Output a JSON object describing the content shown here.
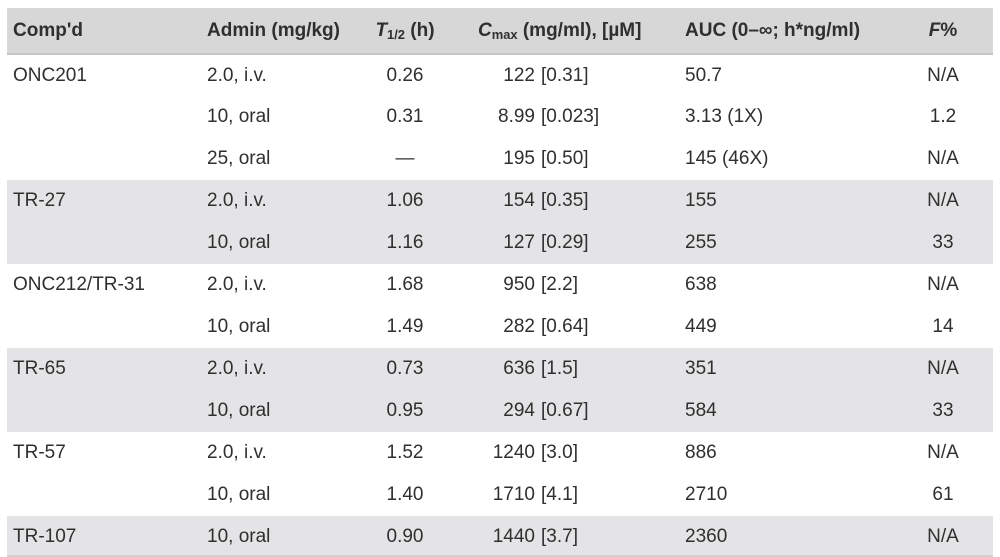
{
  "colors": {
    "header_band": "#d7d7d8",
    "row_band": "#e4e4e6",
    "text": "#2f2f2f"
  },
  "table": {
    "headers": {
      "compound": "Comp'd",
      "admin": "Admin (mg/kg)",
      "thalf_main": "T",
      "thalf_sub": "1/2",
      "thalf_rest": " (h)",
      "cmax_main": "C",
      "cmax_sub": "max",
      "cmax_rest": " (mg/ml), [µM]",
      "auc": "AUC (0–∞; h*ng/ml)",
      "f_main": "F",
      "f_rest": "%"
    },
    "rows": [
      {
        "compound": "ONC201",
        "admin": "2.0, i.v.",
        "thalf": "0.26",
        "cmax_num": "122",
        "cmax_br": "[0.31]",
        "auc": "50.7",
        "f": "N/A",
        "band": "white"
      },
      {
        "compound": "",
        "admin": "10, oral",
        "thalf": "0.31",
        "cmax_num": "8.99",
        "cmax_br": "[0.023]",
        "auc": "3.13 (1X)",
        "f": "1.2",
        "band": "white"
      },
      {
        "compound": "",
        "admin": "25, oral",
        "thalf": "—",
        "cmax_num": "195",
        "cmax_br": "[0.50]",
        "auc": "145 (46X)",
        "f": "N/A",
        "band": "white"
      },
      {
        "compound": "TR-27",
        "admin": "2.0, i.v.",
        "thalf": "1.06",
        "cmax_num": "154",
        "cmax_br": "[0.35]",
        "auc": "155",
        "f": "N/A",
        "band": "gray"
      },
      {
        "compound": "",
        "admin": "10, oral",
        "thalf": "1.16",
        "cmax_num": "127",
        "cmax_br": "[0.29]",
        "auc": "255",
        "f": "33",
        "band": "gray"
      },
      {
        "compound": "ONC212/TR-31",
        "admin": "2.0, i.v.",
        "thalf": "1.68",
        "cmax_num": "950",
        "cmax_br": "[2.2]",
        "auc": "638",
        "f": "N/A",
        "band": "white"
      },
      {
        "compound": "",
        "admin": "10, oral",
        "thalf": "1.49",
        "cmax_num": "282",
        "cmax_br": "[0.64]",
        "auc": "449",
        "f": "14",
        "band": "white"
      },
      {
        "compound": "TR-65",
        "admin": "2.0, i.v.",
        "thalf": "0.73",
        "cmax_num": "636",
        "cmax_br": "[1.5]",
        "auc": "351",
        "f": "N/A",
        "band": "gray"
      },
      {
        "compound": "",
        "admin": "10, oral",
        "thalf": "0.95",
        "cmax_num": "294",
        "cmax_br": "[0.67]",
        "auc": "584",
        "f": "33",
        "band": "gray"
      },
      {
        "compound": "TR-57",
        "admin": "2.0, i.v.",
        "thalf": "1.52",
        "cmax_num": "1240",
        "cmax_br": "[3.0]",
        "auc": "886",
        "f": "N/A",
        "band": "white"
      },
      {
        "compound": "",
        "admin": "10, oral",
        "thalf": "1.40",
        "cmax_num": "1710",
        "cmax_br": "[4.1]",
        "auc": "2710",
        "f": "61",
        "band": "white"
      },
      {
        "compound": "TR-107",
        "admin": "10, oral",
        "thalf": "0.90",
        "cmax_num": "1440",
        "cmax_br": "[3.7]",
        "auc": "2360",
        "f": "N/A",
        "band": "gray"
      }
    ]
  }
}
